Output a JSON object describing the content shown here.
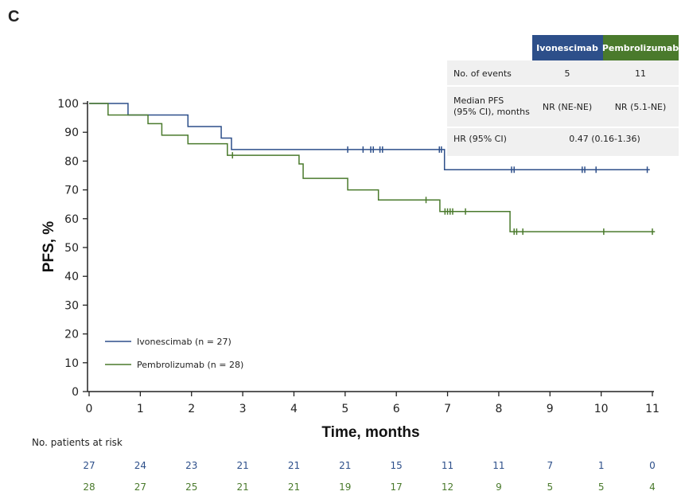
{
  "panel_label": "C",
  "colors": {
    "ivonescimab": "#2d4f8a",
    "pembrolizumab": "#4a7a2c",
    "table_bg": "#f0f0f0",
    "axis": "#222222"
  },
  "summary_table": {
    "headers": [
      "Ivonescimab",
      "Pembrolizumab"
    ],
    "rows": [
      {
        "label": [
          "No. of events"
        ],
        "values": [
          "5",
          "11"
        ]
      },
      {
        "label": [
          "Median PFS",
          "(95% CI), months"
        ],
        "values": [
          "NR (NE-NE)",
          "NR (5.1-NE)"
        ]
      },
      {
        "label": [
          "HR (95% CI)"
        ],
        "combined": "0.47 (0.16-1.36)"
      }
    ]
  },
  "risk_table": {
    "title": "No. patients at risk",
    "ivonescimab": [
      "27",
      "24",
      "23",
      "21",
      "21",
      "21",
      "15",
      "11",
      "11",
      "7",
      "1",
      "0"
    ],
    "pembrolizumab": [
      "28",
      "27",
      "25",
      "21",
      "21",
      "19",
      "17",
      "12",
      "9",
      "5",
      "5",
      "4"
    ]
  },
  "chart_data": {
    "type": "line",
    "step": true,
    "xlabel": "Time, months",
    "ylabel": "PFS, %",
    "xlim": [
      0,
      11
    ],
    "ylim": [
      0,
      100
    ],
    "xticks": [
      0,
      1,
      2,
      3,
      4,
      5,
      6,
      7,
      8,
      9,
      10,
      11
    ],
    "yticks": [
      0,
      10,
      20,
      30,
      40,
      50,
      60,
      70,
      80,
      90,
      100
    ],
    "legend_position": "bottom-left",
    "series": [
      {
        "name": "Ivonescimab (n = 27)",
        "key": "ivonescimab",
        "x": [
          0,
          0.76,
          1.93,
          2.58,
          2.78,
          6.94,
          10.95
        ],
        "y": [
          100,
          96,
          92,
          88,
          84,
          77,
          77
        ],
        "censored": [
          5.05,
          5.35,
          5.5,
          5.55,
          5.68,
          5.73,
          6.84,
          6.88,
          8.25,
          8.3,
          9.63,
          9.68,
          9.9,
          10.9
        ]
      },
      {
        "name": "Pembrolizumab (n = 28)",
        "key": "pembrolizumab",
        "x": [
          0,
          0.37,
          1.15,
          1.42,
          1.93,
          2.7,
          4.1,
          4.18,
          5.05,
          5.65,
          6.85,
          8.22,
          11.05
        ],
        "y": [
          100,
          96,
          93,
          89,
          86,
          82,
          79,
          74,
          70,
          66.5,
          62.5,
          55.5,
          55.5
        ],
        "censored": [
          2.8,
          6.58,
          6.95,
          7.0,
          7.05,
          7.1,
          7.35,
          8.3,
          8.35,
          8.47,
          10.05,
          11.0
        ]
      }
    ]
  }
}
